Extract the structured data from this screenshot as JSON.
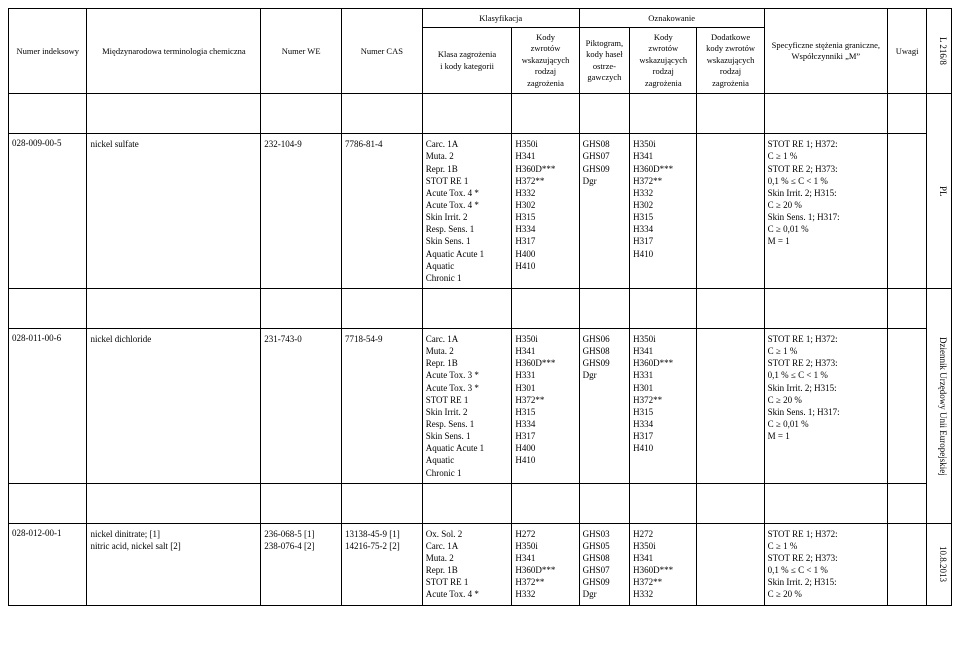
{
  "sideLabels": {
    "topRight": "L 216/8",
    "pl": "PL",
    "journal": "Dziennik Urzędowy Unii Europejskiej",
    "date": "10.8.2013"
  },
  "header": {
    "numerIndeksowy": "Numer indeksowy",
    "terminologia": "Międzynarodowa terminologia chemiczna",
    "numerWE": "Numer WE",
    "numerCAS": "Numer CAS",
    "klasyfikacja": "Klasyfikacja",
    "oznakowanie": "Oznakowanie",
    "klasaZagrozenia": "Klasa zagrożenia\ni kody kategorii",
    "kodyZwrotow1": "Kody\nzwrotów\nwskazujących\nrodzaj\nzagrożenia",
    "piktogram": "Piktogram,\nkody haseł\nostrze-\ngawczych",
    "kodyZwrotow2": "Kody\nzwrotów\nwskazujących\nrodzaj\nzagrożenia",
    "dodatkowe": "Dodatkowe\nkody zwrotów\nwskazujących\nrodzaj\nzagrożenia",
    "specyficzne": "Specyficzne stężenia graniczne,\nWspółczynniki „M”",
    "uwagi": "Uwagi"
  },
  "rows": [
    {
      "idx": "028-009-00-5",
      "term": "nickel sulfate",
      "we": "232-104-9",
      "cas": "7786-81-4",
      "klasa": "Carc. 1A\nMuta. 2\nRepr. 1B\nSTOT RE 1\nAcute Tox. 4 *\nAcute Tox. 4 *\nSkin Irrit. 2\nResp. Sens. 1\nSkin Sens. 1\nAquatic Acute 1\nAquatic\nChronic 1",
      "kody1": "H350i\nH341\nH360D***\nH372**\nH332\nH302\nH315\nH334\nH317\nH400\nH410",
      "pikt": "GHS08\nGHS07\nGHS09\nDgr",
      "kody2": "H350i\nH341\nH360D***\nH372**\nH332\nH302\nH315\nH334\nH317\nH410",
      "dod": "",
      "spec": "STOT RE 1; H372:\nC ≥ 1 %\nSTOT RE 2; H373:\n0,1 % ≤ C < 1 %\nSkin Irrit. 2; H315:\nC ≥ 20 %\nSkin Sens. 1; H317:\nC ≥ 0,01 %\nM = 1",
      "uwagi": ""
    },
    {
      "idx": "028-011-00-6",
      "term": "nickel dichloride",
      "we": "231-743-0",
      "cas": "7718-54-9",
      "klasa": "Carc. 1A\nMuta. 2\nRepr. 1B\nAcute Tox. 3 *\nAcute Tox. 3 *\nSTOT RE 1\nSkin Irrit. 2\nResp. Sens. 1\nSkin Sens. 1\nAquatic Acute 1\nAquatic\nChronic 1",
      "kody1": "H350i\nH341\nH360D***\nH331\nH301\nH372**\nH315\nH334\nH317\nH400\nH410",
      "pikt": "GHS06\nGHS08\nGHS09\nDgr",
      "kody2": "H350i\nH341\nH360D***\nH331\nH301\nH372**\nH315\nH334\nH317\nH410",
      "dod": "",
      "spec": "STOT RE 1; H372:\nC ≥ 1 %\nSTOT RE 2; H373:\n0,1 % ≤ C < 1 %\nSkin Irrit. 2; H315:\nC ≥ 20 %\nSkin Sens. 1; H317:\nC ≥ 0,01 %\nM = 1",
      "uwagi": ""
    },
    {
      "idx": "028-012-00-1",
      "term": "nickel dinitrate; [1]\nnitric acid, nickel salt [2]",
      "we": "236-068-5 [1]\n238-076-4 [2]",
      "cas": "13138-45-9 [1]\n14216-75-2 [2]",
      "klasa": "Ox. Sol. 2\nCarc. 1A\nMuta. 2\nRepr. 1B\nSTOT RE 1\nAcute Tox. 4 *",
      "kody1": "H272\nH350i\nH341\nH360D***\nH372**\nH332",
      "pikt": "GHS03\nGHS05\nGHS08\nGHS07\nGHS09\nDgr",
      "kody2": "H272\nH350i\nH341\nH360D***\nH372**\nH332",
      "dod": "",
      "spec": "STOT RE 1; H372:\nC ≥ 1 %\nSTOT RE 2; H373:\n0,1 % ≤ C < 1 %\nSkin Irrit. 2; H315:\nC ≥ 20 %",
      "uwagi": ""
    }
  ]
}
